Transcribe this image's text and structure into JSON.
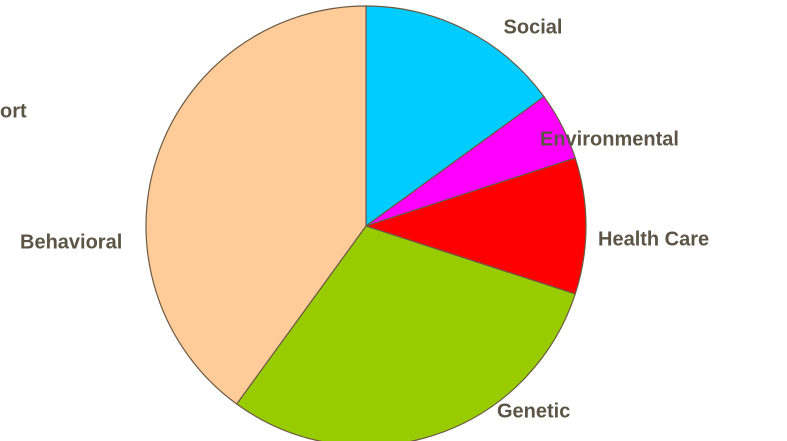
{
  "chart_data": {
    "type": "pie",
    "categories": [
      "Social",
      "Environmental",
      "Health Care",
      "Genetic",
      "Behavioral"
    ],
    "values": [
      15,
      5,
      10,
      30,
      40
    ],
    "colors": [
      "#00ccff",
      "#ff00ff",
      "#ff0000",
      "#99cc00",
      "#ffcc99"
    ],
    "annotations": [
      "ort"
    ]
  }
}
